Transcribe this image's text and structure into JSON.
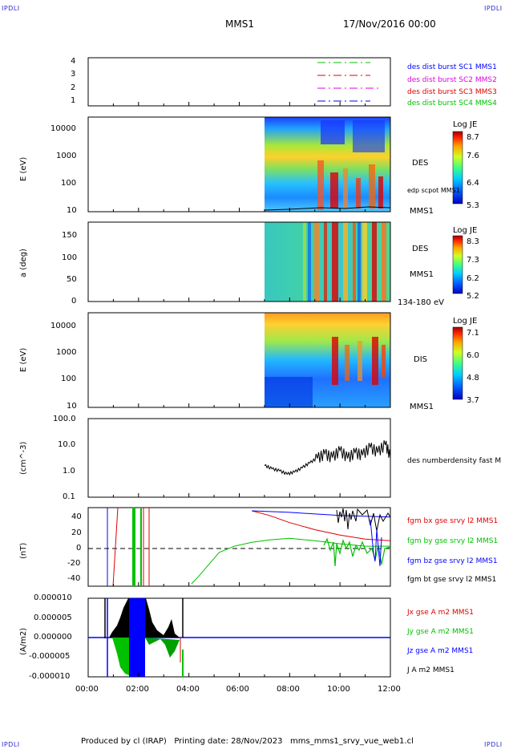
{
  "header": {
    "corner_tl": "IPDLI",
    "corner_tr": "IPDLI",
    "corner_bl": "IPDLI",
    "corner_br": "IPDLI",
    "spacecraft": "MMS1",
    "date": "17/Nov/2016 00:00"
  },
  "footer": {
    "text": "Produced by cl (IRAP)   Printing date: 28/Nov/2023   mms_mms1_srvy_vue_web1.cl"
  },
  "x_axis": {
    "ticks": [
      "00:00",
      "02:00",
      "04:00",
      "06:00",
      "08:00",
      "10:00",
      "12:00"
    ]
  },
  "colors": {
    "blue": "#0000ff",
    "magenta": "#e000e0",
    "red": "#e00000",
    "green": "#00c000",
    "black": "#000000"
  },
  "panels": {
    "burst": {
      "yticks": [
        "4",
        "3",
        "2",
        "1"
      ],
      "legend": [
        {
          "text": "des dist burst SC1 MMS1",
          "color": "#0000ff"
        },
        {
          "text": "des dist burst SC2 MMS2",
          "color": "#e000e0"
        },
        {
          "text": "des dist burst SC3 MMS3",
          "color": "#e00000"
        },
        {
          "text": "des dist burst SC4 MMS4",
          "color": "#00c000"
        }
      ]
    },
    "des_energy": {
      "ylabel": "E (eV)",
      "yticks": [
        "10000",
        "1000",
        "100",
        "10"
      ],
      "right_label": "DES",
      "overlay_label": "edp scpot MMS1",
      "sc_label": "MMS1",
      "cbar_title": "Log JE",
      "cbar_ticks": [
        "8.7",
        "7.6",
        "6.4",
        "5.3"
      ]
    },
    "des_pitch": {
      "ylabel": "a (deg)",
      "yticks": [
        "150",
        "100",
        "50",
        "0"
      ],
      "right_label": "DES",
      "sc_label": "MMS1",
      "range_label": "134-180 eV",
      "cbar_title": "Log JE",
      "cbar_ticks": [
        "8.3",
        "7.3",
        "6.2",
        "5.2"
      ]
    },
    "dis_energy": {
      "ylabel": "E (eV)",
      "yticks": [
        "10000",
        "1000",
        "100",
        "10"
      ],
      "right_label": "DIS",
      "sc_label": "MMS1",
      "cbar_title": "Log JE",
      "cbar_ticks": [
        "7.1",
        "6.0",
        "4.8",
        "3.7"
      ]
    },
    "density": {
      "ylabel": "(cm^-3)",
      "yticks": [
        "100.0",
        "10.0",
        "1.0",
        "0.1"
      ],
      "legend": "des numberdensity fast M"
    },
    "bfield": {
      "ylabel": "(nT)",
      "yticks": [
        "40",
        "20",
        "0",
        "-20",
        "-40"
      ],
      "legend": [
        {
          "text": "fgm bx gse srvy l2 MMS1",
          "color": "#e00000"
        },
        {
          "text": "fgm by gse srvy l2 MMS1",
          "color": "#00c000"
        },
        {
          "text": "fgm bz gse srvy l2 MMS1",
          "color": "#0000ff"
        },
        {
          "text": "fgm bt gse srvy l2 MMS1",
          "color": "#000000"
        }
      ]
    },
    "current": {
      "ylabel": "(A/m2)",
      "yticks": [
        "0.000010",
        "0.000005",
        "0.000000",
        "-0.000005",
        "-0.000010"
      ],
      "legend": [
        {
          "text": "Jx gse A m2 MMS1",
          "color": "#e00000"
        },
        {
          "text": "Jy gse A m2 MMS1",
          "color": "#00c000"
        },
        {
          "text": "Jz gse A m2 MMS1",
          "color": "#0000ff"
        },
        {
          "text": "J A m2 MMS1",
          "color": "#000000"
        }
      ]
    }
  },
  "chart_data": {
    "type": "line",
    "x_unit": "hours",
    "x_range": [
      0,
      12
    ],
    "density_series": {
      "name": "des numberdensity fast M",
      "x": [
        7.0,
        7.3,
        7.6,
        7.9,
        8.2,
        8.5,
        8.8,
        9.1,
        9.4,
        9.7,
        10.0,
        10.3,
        10.6,
        10.9,
        11.2,
        11.5,
        11.8,
        12.0
      ],
      "y": [
        1.6,
        1.2,
        1.0,
        0.75,
        0.9,
        1.3,
        2.0,
        3.0,
        4.5,
        3.2,
        6.0,
        3.0,
        5.0,
        4.0,
        8.0,
        5.0,
        10.0,
        3.0
      ]
    },
    "bfield_series": [
      {
        "name": "fgm by gse srvy l2 MMS1",
        "x": [
          4.1,
          4.4,
          4.8,
          5.2,
          5.8,
          6.5,
          7.2,
          8.0,
          9.0,
          10.0,
          11.0,
          12.0
        ],
        "y": [
          -45,
          -35,
          -20,
          -5,
          3,
          8,
          11,
          13,
          10,
          6,
          3,
          3
        ]
      },
      {
        "name": "fgm bx gse srvy l2 MMS1",
        "x": [
          6.5,
          7.2,
          8.0,
          9.0,
          10.0,
          11.0,
          12.0
        ],
        "y": [
          48,
          42,
          33,
          24,
          17,
          12,
          10
        ]
      },
      {
        "name": "fgm bz gse srvy l2 MMS1",
        "x": [
          6.5,
          7.2,
          8.0,
          9.0,
          10.0,
          11.0,
          12.0
        ],
        "y": [
          48,
          47,
          46,
          44,
          42,
          41,
          40
        ]
      }
    ]
  }
}
